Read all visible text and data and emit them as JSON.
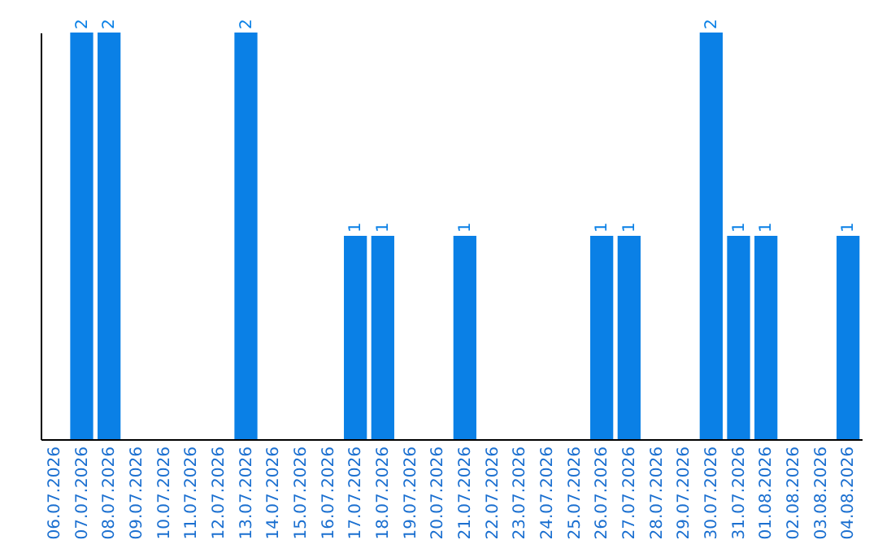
{
  "chart_data": {
    "type": "bar",
    "categories": [
      "06.07.2026",
      "07.07.2026",
      "08.07.2026",
      "09.07.2026",
      "10.07.2026",
      "11.07.2026",
      "12.07.2026",
      "13.07.2026",
      "14.07.2026",
      "15.07.2026",
      "16.07.2026",
      "17.07.2026",
      "18.07.2026",
      "19.07.2026",
      "20.07.2026",
      "21.07.2026",
      "22.07.2026",
      "23.07.2026",
      "24.07.2026",
      "25.07.2026",
      "26.07.2026",
      "27.07.2026",
      "28.07.2026",
      "29.07.2026",
      "30.07.2026",
      "31.07.2026",
      "01.08.2026",
      "02.08.2026",
      "03.08.2026",
      "04.08.2026"
    ],
    "values": [
      0,
      2,
      2,
      0,
      0,
      0,
      0,
      2,
      0,
      0,
      0,
      1,
      1,
      0,
      0,
      1,
      0,
      0,
      0,
      0,
      1,
      1,
      0,
      0,
      2,
      1,
      1,
      0,
      0,
      1
    ],
    "value_labels": [
      null,
      "2",
      "2",
      null,
      null,
      null,
      null,
      "2",
      null,
      null,
      null,
      "1",
      "1",
      null,
      null,
      "1",
      null,
      null,
      null,
      null,
      "1",
      "1",
      null,
      null,
      "2",
      "1",
      "1",
      null,
      null,
      "1"
    ],
    "color": "#0a80e6",
    "grid": false
  }
}
